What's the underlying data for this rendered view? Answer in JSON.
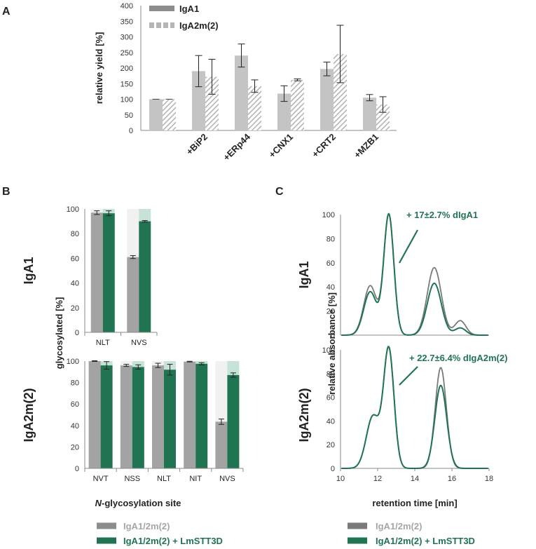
{
  "panels": {
    "A": "A",
    "B": "B",
    "C": "C"
  },
  "colors": {
    "gray_bar": "#c4c4c4",
    "gray_hatch": "#b5b5b5",
    "gray_dark": "#8c8c8c",
    "green": "#217452",
    "green_light": "#c7e3d7",
    "shade": "#f1f1f1",
    "axis": "#8a8a8a",
    "line_gray": "#7a7a7a"
  },
  "chart_data": [
    {
      "id": "A",
      "type": "bar",
      "ylabel": "relative yield [%]",
      "ylim": [
        0,
        400
      ],
      "yticks": [
        0,
        50,
        100,
        150,
        200,
        250,
        300,
        350,
        400
      ],
      "categories": [
        "",
        "+BiP2",
        "+ERp44",
        "+CNX1",
        "+CRT2",
        "+MZB1"
      ],
      "legend": [
        "IgA1",
        "IgA2m(2)"
      ],
      "series": [
        {
          "name": "IgA1",
          "values": [
            100,
            190,
            240,
            118,
            197,
            105
          ],
          "errors": [
            0,
            50,
            37,
            25,
            22,
            10
          ]
        },
        {
          "name": "IgA2m(2)",
          "values": [
            100,
            172,
            142,
            162,
            245,
            83
          ],
          "errors": [
            0,
            56,
            20,
            3,
            92,
            25
          ]
        }
      ]
    },
    {
      "id": "B-IgA1",
      "type": "bar",
      "row_label": "IgA1",
      "ylim": [
        0,
        100
      ],
      "yticks": [
        0,
        20,
        40,
        60,
        80,
        100
      ],
      "categories": [
        "NLT",
        "NVS"
      ],
      "series": [
        {
          "name": "IgA1/2m(2)",
          "values": [
            97,
            61
          ],
          "errors": [
            1.5,
            1.2
          ]
        },
        {
          "name": "IgA1/2m(2) + LmSTT3D",
          "values": [
            96.5,
            90
          ],
          "errors": [
            2,
            0.6
          ]
        }
      ]
    },
    {
      "id": "B-IgA2m2",
      "type": "bar",
      "row_label": "IgA2m(2)",
      "ylim": [
        0,
        100
      ],
      "yticks": [
        0,
        20,
        40,
        60,
        80,
        100
      ],
      "categories": [
        "NVT",
        "NSS",
        "NLT",
        "NIT",
        "NVS"
      ],
      "series": [
        {
          "name": "IgA1/2m(2)",
          "values": [
            100,
            96,
            96,
            99.5,
            43.5
          ],
          "errors": [
            0.3,
            1,
            2,
            0.3,
            2.5
          ]
        },
        {
          "name": "IgA1/2m(2) + LmSTT3D",
          "values": [
            96,
            94.5,
            92,
            97.5,
            87
          ],
          "errors": [
            3.5,
            2,
            5,
            1,
            2
          ]
        }
      ]
    },
    {
      "id": "B-shared",
      "ylabel": "glycosylated [%]",
      "xlabel_prefix": "N",
      "xlabel_suffix": "-glycosylation site",
      "legend": [
        "IgA1/2m(2)",
        "IgA1/2m(2) + LmSTT3D"
      ]
    },
    {
      "id": "C",
      "type": "line",
      "ylabel": "relative absorbance [%]",
      "xlabel": "retention time [min]",
      "xlim": [
        10,
        18
      ],
      "xticks": [
        10,
        12,
        14,
        16,
        18
      ],
      "ylim": [
        0,
        100
      ],
      "yticks": [
        0,
        20,
        40,
        60,
        80,
        100
      ],
      "legend": [
        "IgA1/2m(2)",
        "IgA1/2m(2) + LmSTT3D"
      ],
      "subplots": [
        {
          "row_label": "IgA1",
          "annotation": "+ 17±2.7% dIgA1",
          "series": [
            {
              "name": "IgA1/2m(2)",
              "peaks": [
                [
                  11.6,
                  41,
                  0.35
                ],
                [
                  12.6,
                  100,
                  0.27
                ],
                [
                  15.05,
                  56,
                  0.38
                ],
                [
                  16.45,
                  12,
                  0.3
                ]
              ]
            },
            {
              "name": "IgA1/2m(2) + LmSTT3D",
              "peaks": [
                [
                  11.6,
                  36,
                  0.35
                ],
                [
                  12.6,
                  100,
                  0.27
                ],
                [
                  15.05,
                  43,
                  0.38
                ],
                [
                  16.45,
                  6,
                  0.3
                ]
              ]
            }
          ]
        },
        {
          "row_label": "IgA2m(2)",
          "annotation": "+ 22.7±6.4%  dIgA2m(2)",
          "series": [
            {
              "name": "IgA1/2m(2)",
              "peaks": [
                [
                  11.75,
                  44,
                  0.36
                ],
                [
                  12.6,
                  100,
                  0.28
                ],
                [
                  15.4,
                  85,
                  0.3
                ]
              ]
            },
            {
              "name": "IgA1/2m(2) + LmSTT3D",
              "peaks": [
                [
                  11.75,
                  44,
                  0.36
                ],
                [
                  12.6,
                  100,
                  0.28
                ],
                [
                  15.4,
                  70,
                  0.32
                ]
              ]
            }
          ]
        }
      ]
    }
  ]
}
